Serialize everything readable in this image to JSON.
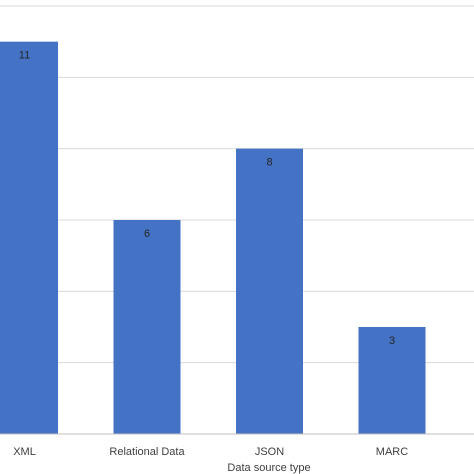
{
  "chart_data": {
    "type": "bar",
    "categories": [
      "XML",
      "Relational Data",
      "JSON",
      "MARC"
    ],
    "values": [
      11,
      6,
      8,
      3
    ],
    "xlabel": "Data source type",
    "ylim": [
      0,
      12
    ],
    "grid": true,
    "gridline_step": 2,
    "bar_color": "#4472c4",
    "gridline_color": "#d9d9d9"
  }
}
